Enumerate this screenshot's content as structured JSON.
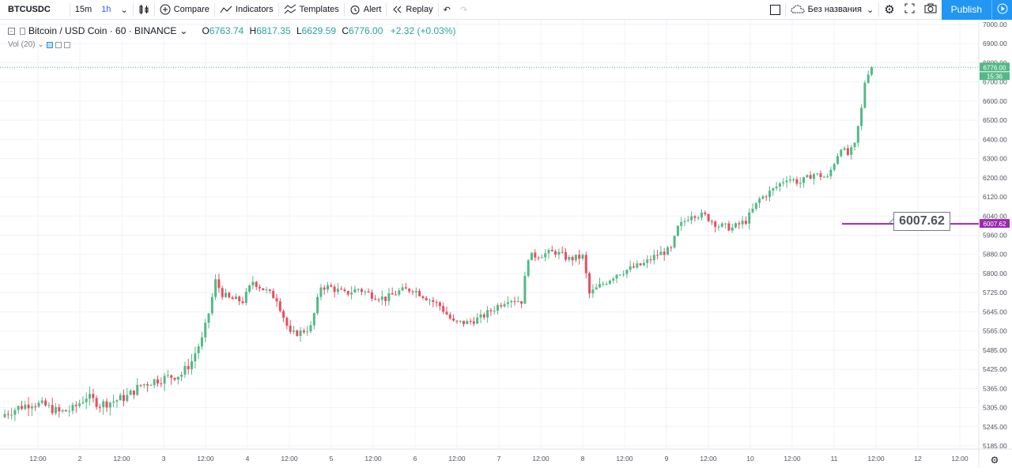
{
  "toolbar": {
    "symbol": "BTCUSDC",
    "timeframes": [
      "15m",
      "1h"
    ],
    "compare": "Compare",
    "indicators": "Indicators",
    "templates": "Templates",
    "alert": "Alert",
    "replay": "Replay",
    "layout_name": "Без названия",
    "publish": "Publish"
  },
  "legend": {
    "title": "Bitcoin / USD Coin · 60 · BINANCE",
    "open_label": "O",
    "open": "6763.74",
    "high_label": "H",
    "high": "6817.35",
    "low_label": "L",
    "low": "6629.59",
    "close_label": "C",
    "close": "6776.00",
    "change": "+2.32 (+0.03%)",
    "volume": "Vol (20)"
  },
  "price_badges": {
    "last": "6776.00",
    "countdown": "15:36",
    "line": "6007.62",
    "callout": "6007.62"
  },
  "colors": {
    "up": "#53b987",
    "down": "#eb4d5c",
    "line": "#9c27b0",
    "accent": "#2196f3"
  },
  "chart_data": {
    "type": "candlestick",
    "y_ticks": [
      "7000.00",
      "6900.00",
      "6800.00",
      "6700.00",
      "6600.00",
      "6500.00",
      "6400.00",
      "6300.00",
      "6200.00",
      "6120.00",
      "6040.00",
      "5960.00",
      "5880.00",
      "5800.00",
      "5725.00",
      "5645.00",
      "5565.00",
      "5485.00",
      "5425.00",
      "5365.00",
      "5305.00",
      "5245.00",
      "5185.00"
    ],
    "x_ticks": [
      "12:00",
      "2",
      "12:00",
      "3",
      "12:00",
      "4",
      "12:00",
      "5",
      "12:00",
      "6",
      "12:00",
      "7",
      "12:00",
      "8",
      "12:00",
      "9",
      "12:00",
      "10",
      "12:00",
      "11",
      "12:00",
      "12",
      "12:00"
    ],
    "close_path": [
      [
        0,
        5285
      ],
      [
        4,
        5305
      ],
      [
        8,
        5320
      ],
      [
        12,
        5310
      ],
      [
        16,
        5290
      ],
      [
        20,
        5300
      ],
      [
        24,
        5340
      ],
      [
        28,
        5315
      ],
      [
        32,
        5325
      ],
      [
        36,
        5340
      ],
      [
        40,
        5375
      ],
      [
        44,
        5390
      ],
      [
        48,
        5400
      ],
      [
        52,
        5410
      ],
      [
        55,
        5450
      ],
      [
        58,
        5530
      ],
      [
        60,
        5640
      ],
      [
        62,
        5770
      ],
      [
        64,
        5720
      ],
      [
        66,
        5700
      ],
      [
        70,
        5690
      ],
      [
        73,
        5770
      ],
      [
        76,
        5740
      ],
      [
        80,
        5700
      ],
      [
        84,
        5550
      ],
      [
        87,
        5560
      ],
      [
        90,
        5580
      ],
      [
        93,
        5750
      ],
      [
        96,
        5745
      ],
      [
        100,
        5720
      ],
      [
        104,
        5740
      ],
      [
        108,
        5715
      ],
      [
        112,
        5700
      ],
      [
        116,
        5730
      ],
      [
        120,
        5740
      ],
      [
        124,
        5705
      ],
      [
        128,
        5670
      ],
      [
        132,
        5600
      ],
      [
        136,
        5600
      ],
      [
        140,
        5620
      ],
      [
        144,
        5660
      ],
      [
        148,
        5700
      ],
      [
        152,
        5690
      ],
      [
        154,
        5870
      ],
      [
        158,
        5880
      ],
      [
        162,
        5890
      ],
      [
        166,
        5860
      ],
      [
        170,
        5870
      ],
      [
        172,
        5720
      ],
      [
        176,
        5760
      ],
      [
        180,
        5800
      ],
      [
        184,
        5820
      ],
      [
        188,
        5840
      ],
      [
        190,
        5860
      ],
      [
        192,
        5880
      ],
      [
        194,
        5890
      ],
      [
        196,
        5900
      ],
      [
        198,
        5990
      ],
      [
        202,
        6050
      ],
      [
        206,
        6040
      ],
      [
        210,
        6000
      ],
      [
        214,
        5990
      ],
      [
        218,
        6020
      ],
      [
        222,
        6110
      ],
      [
        226,
        6150
      ],
      [
        230,
        6200
      ],
      [
        234,
        6180
      ],
      [
        238,
        6220
      ],
      [
        242,
        6200
      ],
      [
        246,
        6360
      ],
      [
        248,
        6320
      ],
      [
        250,
        6370
      ],
      [
        252,
        6560
      ],
      [
        253,
        6700
      ],
      [
        254,
        6750
      ],
      [
        255,
        6776
      ]
    ],
    "annotations": [
      "6007.62"
    ]
  }
}
